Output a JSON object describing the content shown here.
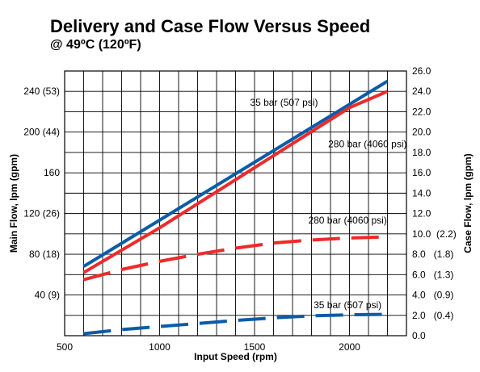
{
  "header": {
    "title": "Delivery and Case Flow Versus Speed",
    "subtitle": "@ 49ºC (120ºF)"
  },
  "chart_data": {
    "type": "line",
    "title": "Delivery and Case Flow Versus Speed",
    "subtitle": "@ 49ºC (120ºF)",
    "xlabel": "Input Speed (rpm)",
    "ylabel_left": "Main Flow, lpm (gpm)",
    "ylabel_right": "Case Flow, lpm (gpm)",
    "xlim": [
      500,
      2300
    ],
    "ylim_left": [
      0,
      260
    ],
    "ylim_right": [
      0,
      26
    ],
    "grid": true,
    "x_ticks": [
      {
        "value": 500,
        "label": "500"
      },
      {
        "value": 1000,
        "label": "1000"
      },
      {
        "value": 1500,
        "label": "1500"
      },
      {
        "value": 2000,
        "label": "2000"
      }
    ],
    "x_grid_step": 100,
    "y_left_ticks": [
      {
        "value": 40,
        "label": "40 (9)"
      },
      {
        "value": 80,
        "label": "80 (18)"
      },
      {
        "value": 120,
        "label": "120 (26)"
      },
      {
        "value": 160,
        "label": "160"
      },
      {
        "value": 200,
        "label": "200 (44)"
      },
      {
        "value": 240,
        "label": "240 (53)"
      }
    ],
    "y_left_grid_step": 20,
    "y_right_ticks": [
      {
        "value": 0,
        "label": "0.0"
      },
      {
        "value": 2,
        "label": "2.0   (0.4)"
      },
      {
        "value": 4,
        "label": "4.0   (0.9)"
      },
      {
        "value": 6,
        "label": "6.0   (1.3)"
      },
      {
        "value": 8,
        "label": "8.0   (1.8)"
      },
      {
        "value": 10,
        "label": "10.0  (2.2)"
      },
      {
        "value": 12,
        "label": "12.0"
      },
      {
        "value": 14,
        "label": "14.0"
      },
      {
        "value": 16,
        "label": "16.0"
      },
      {
        "value": 18,
        "label": "18.0"
      },
      {
        "value": 20,
        "label": "20.0"
      },
      {
        "value": 22,
        "label": "22.0"
      },
      {
        "value": 24,
        "label": "24.0"
      },
      {
        "value": 26,
        "label": "26.0"
      }
    ],
    "series": [
      {
        "name": "35 bar (507 psi)",
        "axis": "left",
        "color": "#0a5ca8",
        "style": "solid",
        "x": [
          600,
          2200
        ],
        "y": [
          68,
          250
        ]
      },
      {
        "name": "280 bar (4060 psi)",
        "axis": "left",
        "color": "#ee2a2a",
        "style": "solid",
        "x": [
          600,
          1000,
          1500,
          2000,
          2200
        ],
        "y": [
          62,
          106,
          165,
          224,
          240
        ]
      },
      {
        "name": "280 bar (4060 psi)",
        "axis": "right",
        "color": "#ee2a2a",
        "style": "dashed",
        "x": [
          600,
          800,
          1000,
          1200,
          1400,
          1600,
          1800,
          2000,
          2200
        ],
        "y": [
          5.5,
          6.5,
          7.3,
          8.0,
          8.6,
          9.1,
          9.4,
          9.6,
          9.7
        ]
      },
      {
        "name": "35 bar (507 psi)",
        "axis": "right",
        "color": "#0a5ca8",
        "style": "dashed",
        "x": [
          600,
          800,
          1000,
          1200,
          1400,
          1600,
          1800,
          2000,
          2200
        ],
        "y": [
          0.2,
          0.6,
          0.9,
          1.2,
          1.5,
          1.75,
          1.95,
          2.05,
          2.1
        ]
      }
    ],
    "annotations": [
      {
        "text": "35 bar (507 psi)",
        "axis": "left",
        "x": 1655,
        "y": 226
      },
      {
        "text": "280 bar (4060 psi)",
        "axis": "left",
        "x": 2095,
        "y": 185
      },
      {
        "text": "280 bar (4060 psi)",
        "axis": "right",
        "x": 1990,
        "y": 11
      },
      {
        "text": "35 bar (507 psi)",
        "axis": "right",
        "x": 1990,
        "y": 2.7
      }
    ]
  }
}
